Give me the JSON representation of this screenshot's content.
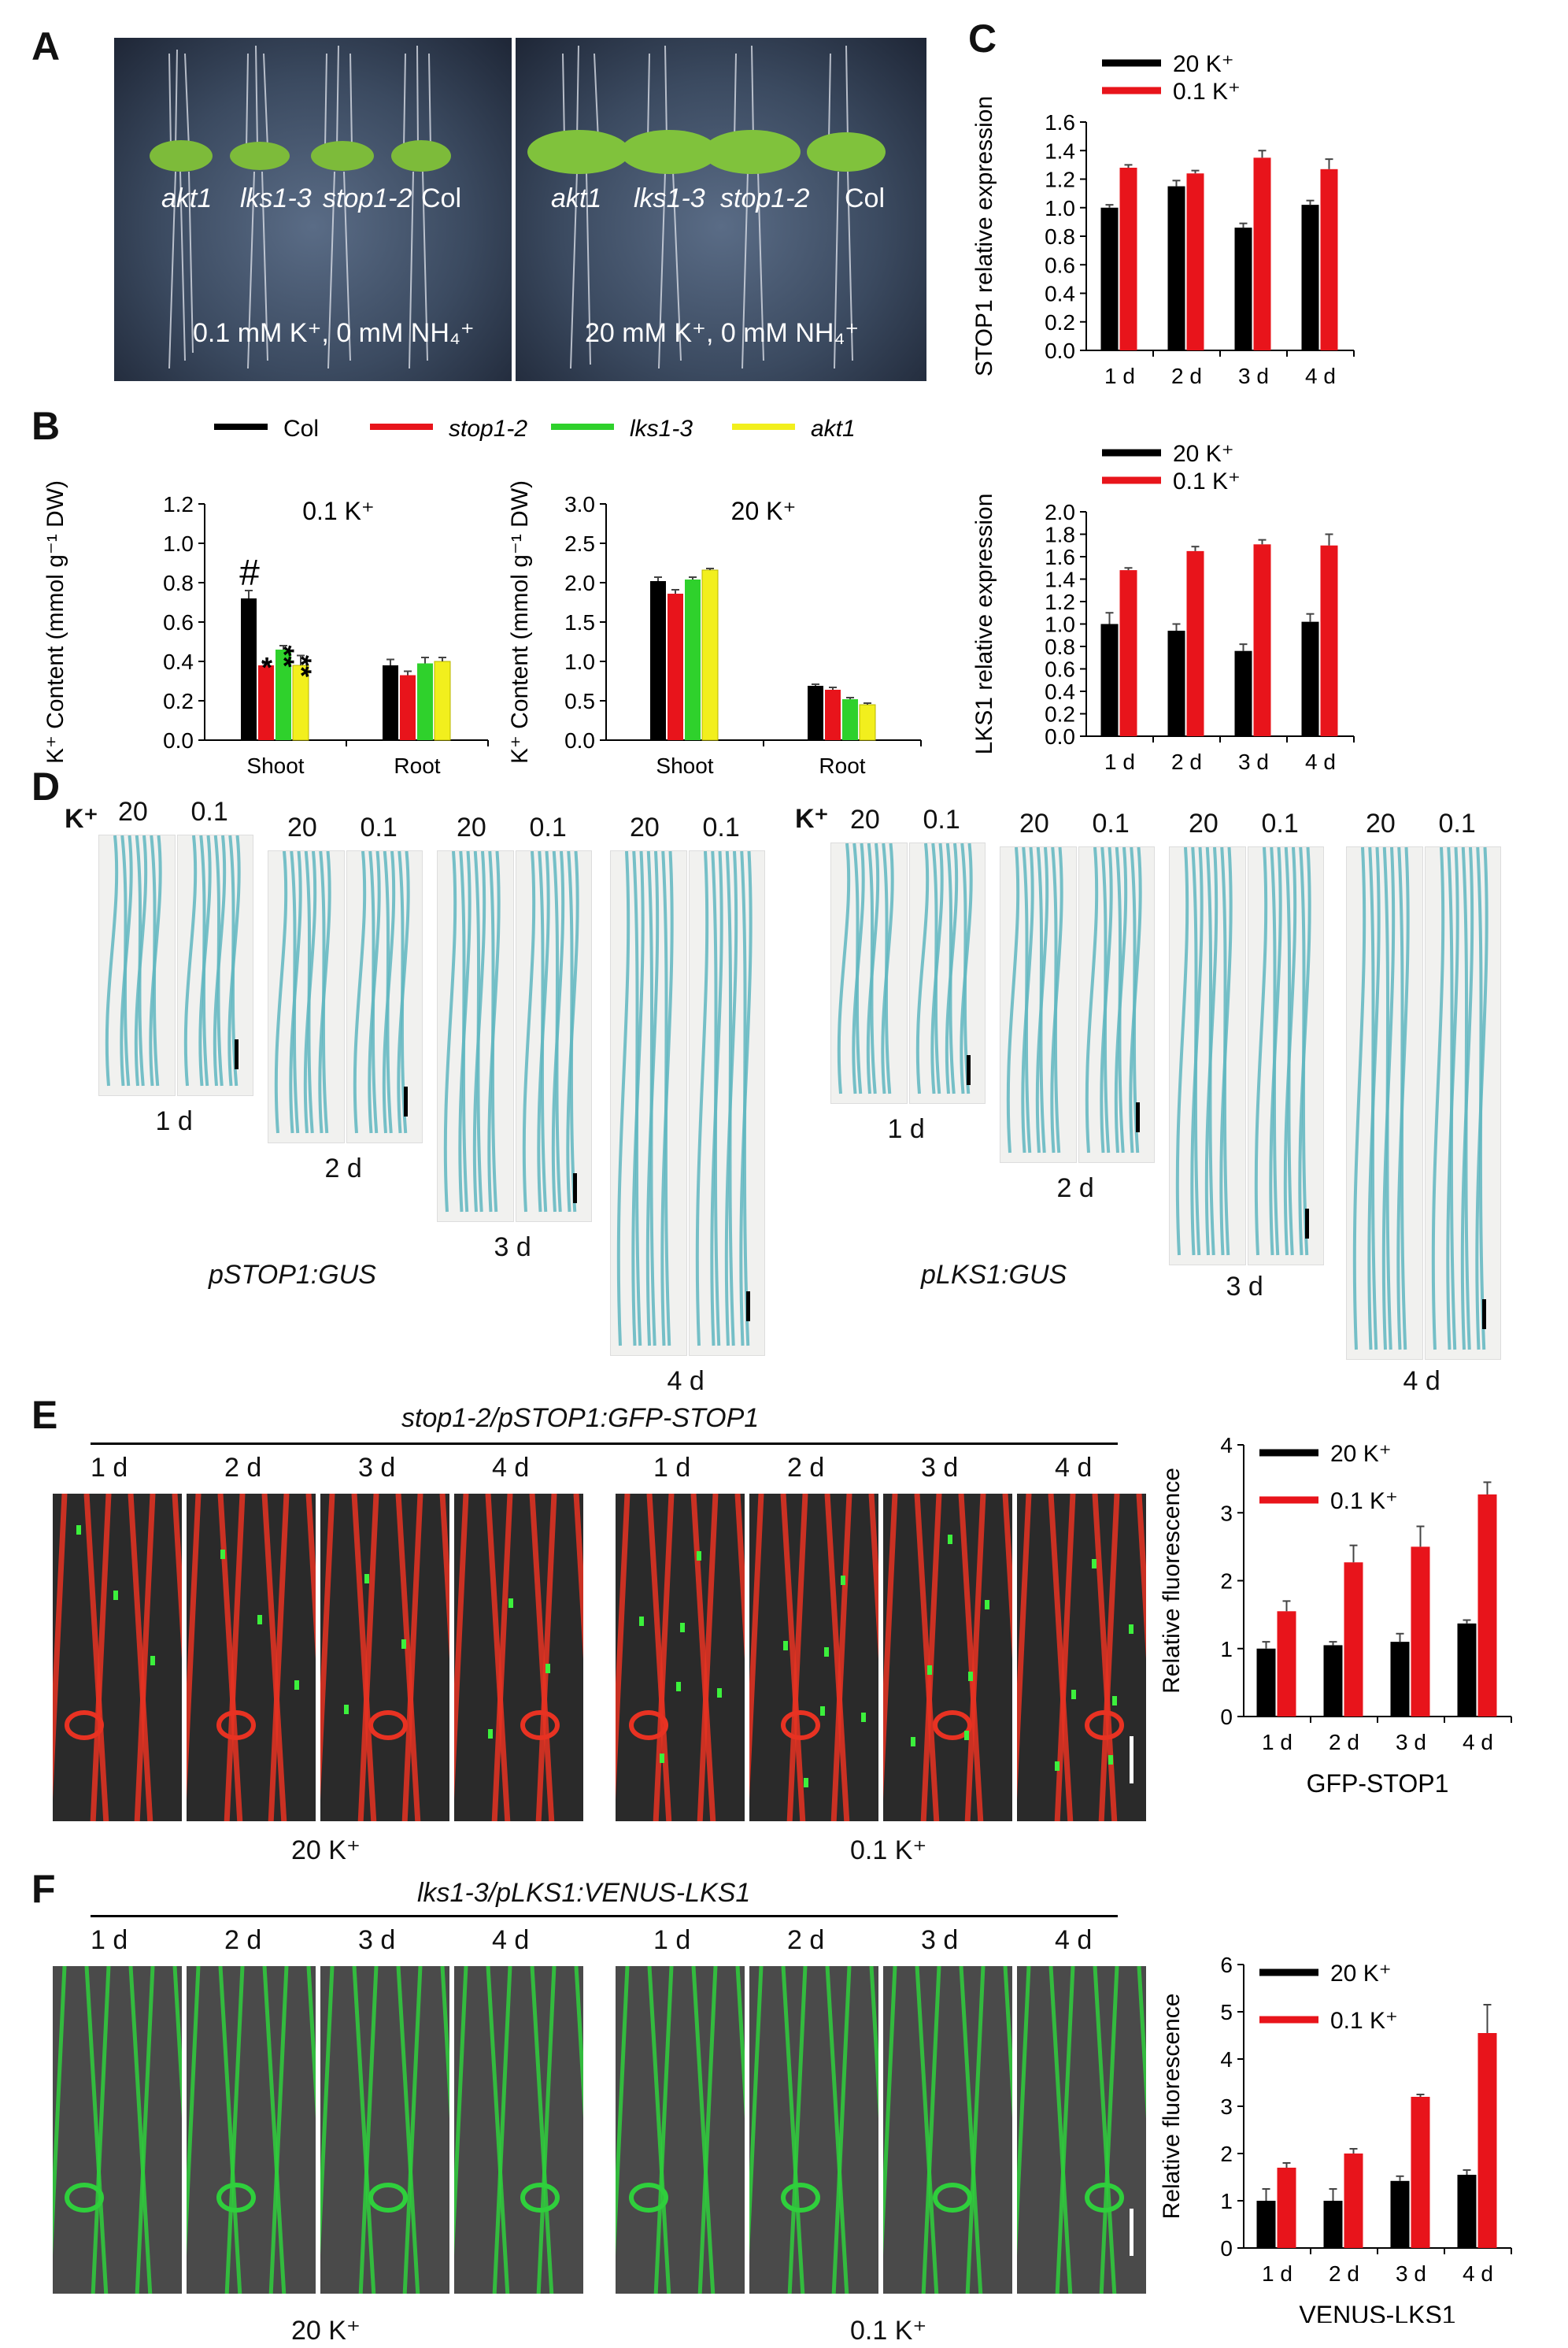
{
  "panels": {
    "A": {
      "label": "A",
      "left": {
        "genotypes": [
          "akt1",
          "lks1-3",
          "stop1-2",
          "Col"
        ],
        "condition": "0.1 mM K⁺, 0 mM NH₄⁺"
      },
      "right": {
        "genotypes": [
          "akt1",
          "lks1-3",
          "stop1-2",
          "Col"
        ],
        "condition": "20 mM K⁺, 0 mM NH₄⁺"
      }
    },
    "B": {
      "label": "B",
      "legend": [
        "Col",
        "stop1-2",
        "lks1-3",
        "akt1"
      ],
      "legend_italic": [
        false,
        true,
        true,
        true
      ],
      "colors": [
        "#000000",
        "#e8141b",
        "#2fd12c",
        "#f2ef1d"
      ],
      "ylabel": "K⁺ Content (mmol g⁻¹ DW)",
      "hash": "#",
      "stars": [
        "*",
        "**",
        "**"
      ]
    },
    "C": {
      "label": "C"
    },
    "D": {
      "label": "D",
      "k_label": "K⁺",
      "conditions": [
        "20",
        "0.1"
      ],
      "days": [
        "1 d",
        "2 d",
        "3 d",
        "4 d"
      ],
      "construct_left": "pSTOP1:GUS",
      "construct_right": "pLKS1:GUS"
    },
    "E": {
      "label": "E",
      "title": "stop1-2/pSTOP1:GFP-STOP1",
      "days": [
        "1 d",
        "2 d",
        "3 d",
        "4 d",
        "1 d",
        "2 d",
        "3 d",
        "4 d"
      ],
      "group_left": "20 K⁺",
      "group_right": "0.1 K⁺"
    },
    "F": {
      "label": "F",
      "title": "lks1-3/pLKS1:VENUS-LKS1",
      "days": [
        "1 d",
        "2 d",
        "3 d",
        "4 d",
        "1 d",
        "2 d",
        "3 d",
        "4 d"
      ],
      "group_left": "20 K⁺",
      "group_right": "0.1 K⁺"
    }
  },
  "chart_data": [
    {
      "id": "B-left",
      "type": "bar",
      "title": "0.1 K⁺",
      "ylabel": "K⁺ Content (mmol g⁻¹ DW)",
      "categories": [
        "Shoot",
        "Root"
      ],
      "ylim": [
        0,
        1.2
      ],
      "yticks": [
        0.0,
        0.2,
        0.4,
        0.6,
        0.8,
        1.0,
        1.2
      ],
      "series": [
        {
          "name": "Col",
          "color": "#000000",
          "values": [
            0.72,
            0.38
          ],
          "errors": [
            0.04,
            0.03
          ]
        },
        {
          "name": "stop1-2",
          "color": "#e8141b",
          "values": [
            0.38,
            0.33
          ],
          "errors": [
            0.01,
            0.02
          ]
        },
        {
          "name": "lks1-3",
          "color": "#2fd12c",
          "values": [
            0.46,
            0.39
          ],
          "errors": [
            0.02,
            0.03
          ]
        },
        {
          "name": "akt1",
          "color": "#f2ef1d",
          "values": [
            0.38,
            0.4
          ],
          "errors": [
            0.05,
            0.02
          ]
        }
      ]
    },
    {
      "id": "B-right",
      "type": "bar",
      "title": "20 K⁺",
      "ylabel": "K⁺ Content (mmol g⁻¹ DW)",
      "categories": [
        "Shoot",
        "Root"
      ],
      "ylim": [
        0,
        3.0
      ],
      "yticks": [
        0.0,
        0.5,
        1.0,
        1.5,
        2.0,
        2.5,
        3.0
      ],
      "series": [
        {
          "name": "Col",
          "color": "#000000",
          "values": [
            2.02,
            0.69
          ],
          "errors": [
            0.05,
            0.02
          ]
        },
        {
          "name": "stop1-2",
          "color": "#e8141b",
          "values": [
            1.86,
            0.64
          ],
          "errors": [
            0.05,
            0.03
          ]
        },
        {
          "name": "lks1-3",
          "color": "#2fd12c",
          "values": [
            2.04,
            0.52
          ],
          "errors": [
            0.03,
            0.02
          ]
        },
        {
          "name": "akt1",
          "color": "#f2ef1d",
          "values": [
            2.16,
            0.45
          ],
          "errors": [
            0.02,
            0.02
          ]
        }
      ]
    },
    {
      "id": "C-top",
      "type": "bar",
      "ylabel": "STOP1 relative expression",
      "categories": [
        "1 d",
        "2 d",
        "3 d",
        "4 d"
      ],
      "ylim": [
        0,
        1.6
      ],
      "yticks": [
        0.0,
        0.2,
        0.4,
        0.6,
        0.8,
        1.0,
        1.2,
        1.4,
        1.6
      ],
      "series": [
        {
          "name": "20 K⁺",
          "color": "#000000",
          "values": [
            1.0,
            1.15,
            0.86,
            1.02
          ],
          "errors": [
            0.02,
            0.04,
            0.03,
            0.03
          ]
        },
        {
          "name": "0.1 K⁺",
          "color": "#e8141b",
          "values": [
            1.28,
            1.24,
            1.35,
            1.27
          ],
          "errors": [
            0.02,
            0.02,
            0.05,
            0.07
          ]
        }
      ]
    },
    {
      "id": "C-bottom",
      "type": "bar",
      "ylabel": "LKS1 relative expression",
      "categories": [
        "1 d",
        "2 d",
        "3 d",
        "4 d"
      ],
      "ylim": [
        0,
        2.0
      ],
      "yticks": [
        0.0,
        0.2,
        0.4,
        0.6,
        0.8,
        1.0,
        1.2,
        1.4,
        1.6,
        1.8,
        2.0
      ],
      "series": [
        {
          "name": "20 K⁺",
          "color": "#000000",
          "values": [
            1.0,
            0.94,
            0.76,
            1.02
          ],
          "errors": [
            0.1,
            0.06,
            0.06,
            0.07
          ]
        },
        {
          "name": "0.1 K⁺",
          "color": "#e8141b",
          "values": [
            1.48,
            1.65,
            1.71,
            1.7
          ],
          "errors": [
            0.02,
            0.04,
            0.04,
            0.1
          ]
        }
      ]
    },
    {
      "id": "E-chart",
      "type": "bar",
      "ylabel": "Relative fluorescence",
      "xlabel": "GFP-STOP1",
      "categories": [
        "1 d",
        "2 d",
        "3 d",
        "4 d"
      ],
      "ylim": [
        0,
        4
      ],
      "yticks": [
        0,
        1,
        2,
        3,
        4
      ],
      "series": [
        {
          "name": "20 K⁺",
          "color": "#000000",
          "values": [
            1.0,
            1.05,
            1.1,
            1.37
          ],
          "errors": [
            0.1,
            0.05,
            0.12,
            0.05
          ]
        },
        {
          "name": "0.1 K⁺",
          "color": "#e8141b",
          "values": [
            1.55,
            2.27,
            2.5,
            3.27
          ],
          "errors": [
            0.15,
            0.25,
            0.3,
            0.18
          ]
        }
      ]
    },
    {
      "id": "F-chart",
      "type": "bar",
      "ylabel": "Relative fluorescence",
      "xlabel": "VENUS-LKS1",
      "categories": [
        "1 d",
        "2 d",
        "3 d",
        "4 d"
      ],
      "ylim": [
        0,
        6
      ],
      "yticks": [
        0,
        1,
        2,
        3,
        4,
        5,
        6
      ],
      "series": [
        {
          "name": "20 K⁺",
          "color": "#000000",
          "values": [
            1.0,
            1.0,
            1.42,
            1.55
          ],
          "errors": [
            0.25,
            0.25,
            0.1,
            0.1
          ]
        },
        {
          "name": "0.1 K⁺",
          "color": "#e8141b",
          "values": [
            1.7,
            2.0,
            3.2,
            4.55
          ],
          "errors": [
            0.1,
            0.1,
            0.05,
            0.6
          ]
        }
      ]
    }
  ]
}
